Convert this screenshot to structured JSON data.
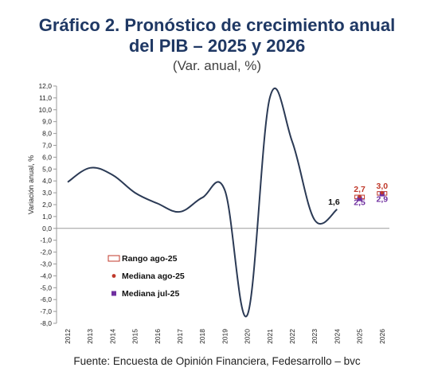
{
  "title_line1": "Gráfico 2. Pronóstico de crecimiento anual",
  "title_line2": "del PIB – 2025 y 2026",
  "subtitle": "(Var. anual, %)",
  "source": "Fuente: Encuesta de Opinión Financiera, Fedesarrollo – bvc",
  "colors": {
    "title": "#1f3864",
    "line": "#2b3a55",
    "range": "#c0392b",
    "median_aug": "#c0392b",
    "median_jul": "#7030a0"
  },
  "chart_data": {
    "type": "line",
    "ylabel": "Variación anual, %",
    "ylim": [
      -8,
      12
    ],
    "yticks": [
      "-8,0",
      "-7,0",
      "-6,0",
      "-5,0",
      "-4,0",
      "-3,0",
      "-2,0",
      "-1,0",
      "0,0",
      "1,0",
      "2,0",
      "3,0",
      "4,0",
      "5,0",
      "6,0",
      "7,0",
      "8,0",
      "9,0",
      "10,0",
      "11,0",
      "12,0"
    ],
    "categories": [
      "2012",
      "2013",
      "2014",
      "2015",
      "2016",
      "2017",
      "2018",
      "2019",
      "2020",
      "2021",
      "2022",
      "2023",
      "2024",
      "2025",
      "2026"
    ],
    "series": [
      {
        "name": "",
        "x": [
          "2012",
          "2013",
          "2014",
          "2015",
          "2016",
          "2017",
          "2018",
          "2019",
          "2020",
          "2021",
          "2022",
          "2023",
          "2024"
        ],
        "values": [
          3.9,
          5.1,
          4.5,
          3.0,
          2.1,
          1.4,
          2.6,
          3.2,
          -7.3,
          11.0,
          7.3,
          0.7,
          1.6
        ]
      },
      {
        "name": "Rango ago-25",
        "x": [
          "2025",
          "2026"
        ],
        "low": [
          2.5,
          2.8
        ],
        "high": [
          2.8,
          3.1
        ]
      },
      {
        "name": "Mediana ago-25",
        "x": [
          "2025",
          "2026"
        ],
        "values": [
          2.7,
          3.0
        ]
      },
      {
        "name": "Mediana jul-25",
        "x": [
          "2025",
          "2026"
        ],
        "values": [
          2.5,
          2.9
        ]
      }
    ],
    "data_labels": [
      {
        "x": "2024",
        "text": "1,6"
      },
      {
        "x": "2025",
        "text": "2,7",
        "series": "Mediana ago-25"
      },
      {
        "x": "2025",
        "text": "2,5",
        "series": "Mediana jul-25"
      },
      {
        "x": "2026",
        "text": "3,0",
        "series": "Mediana ago-25"
      },
      {
        "x": "2026",
        "text": "2,9",
        "series": "Mediana jul-25"
      }
    ],
    "legend": [
      "Rango ago-25",
      "Mediana ago-25",
      "Mediana jul-25"
    ],
    "legend_position": "bottom-left",
    "grid": false
  }
}
